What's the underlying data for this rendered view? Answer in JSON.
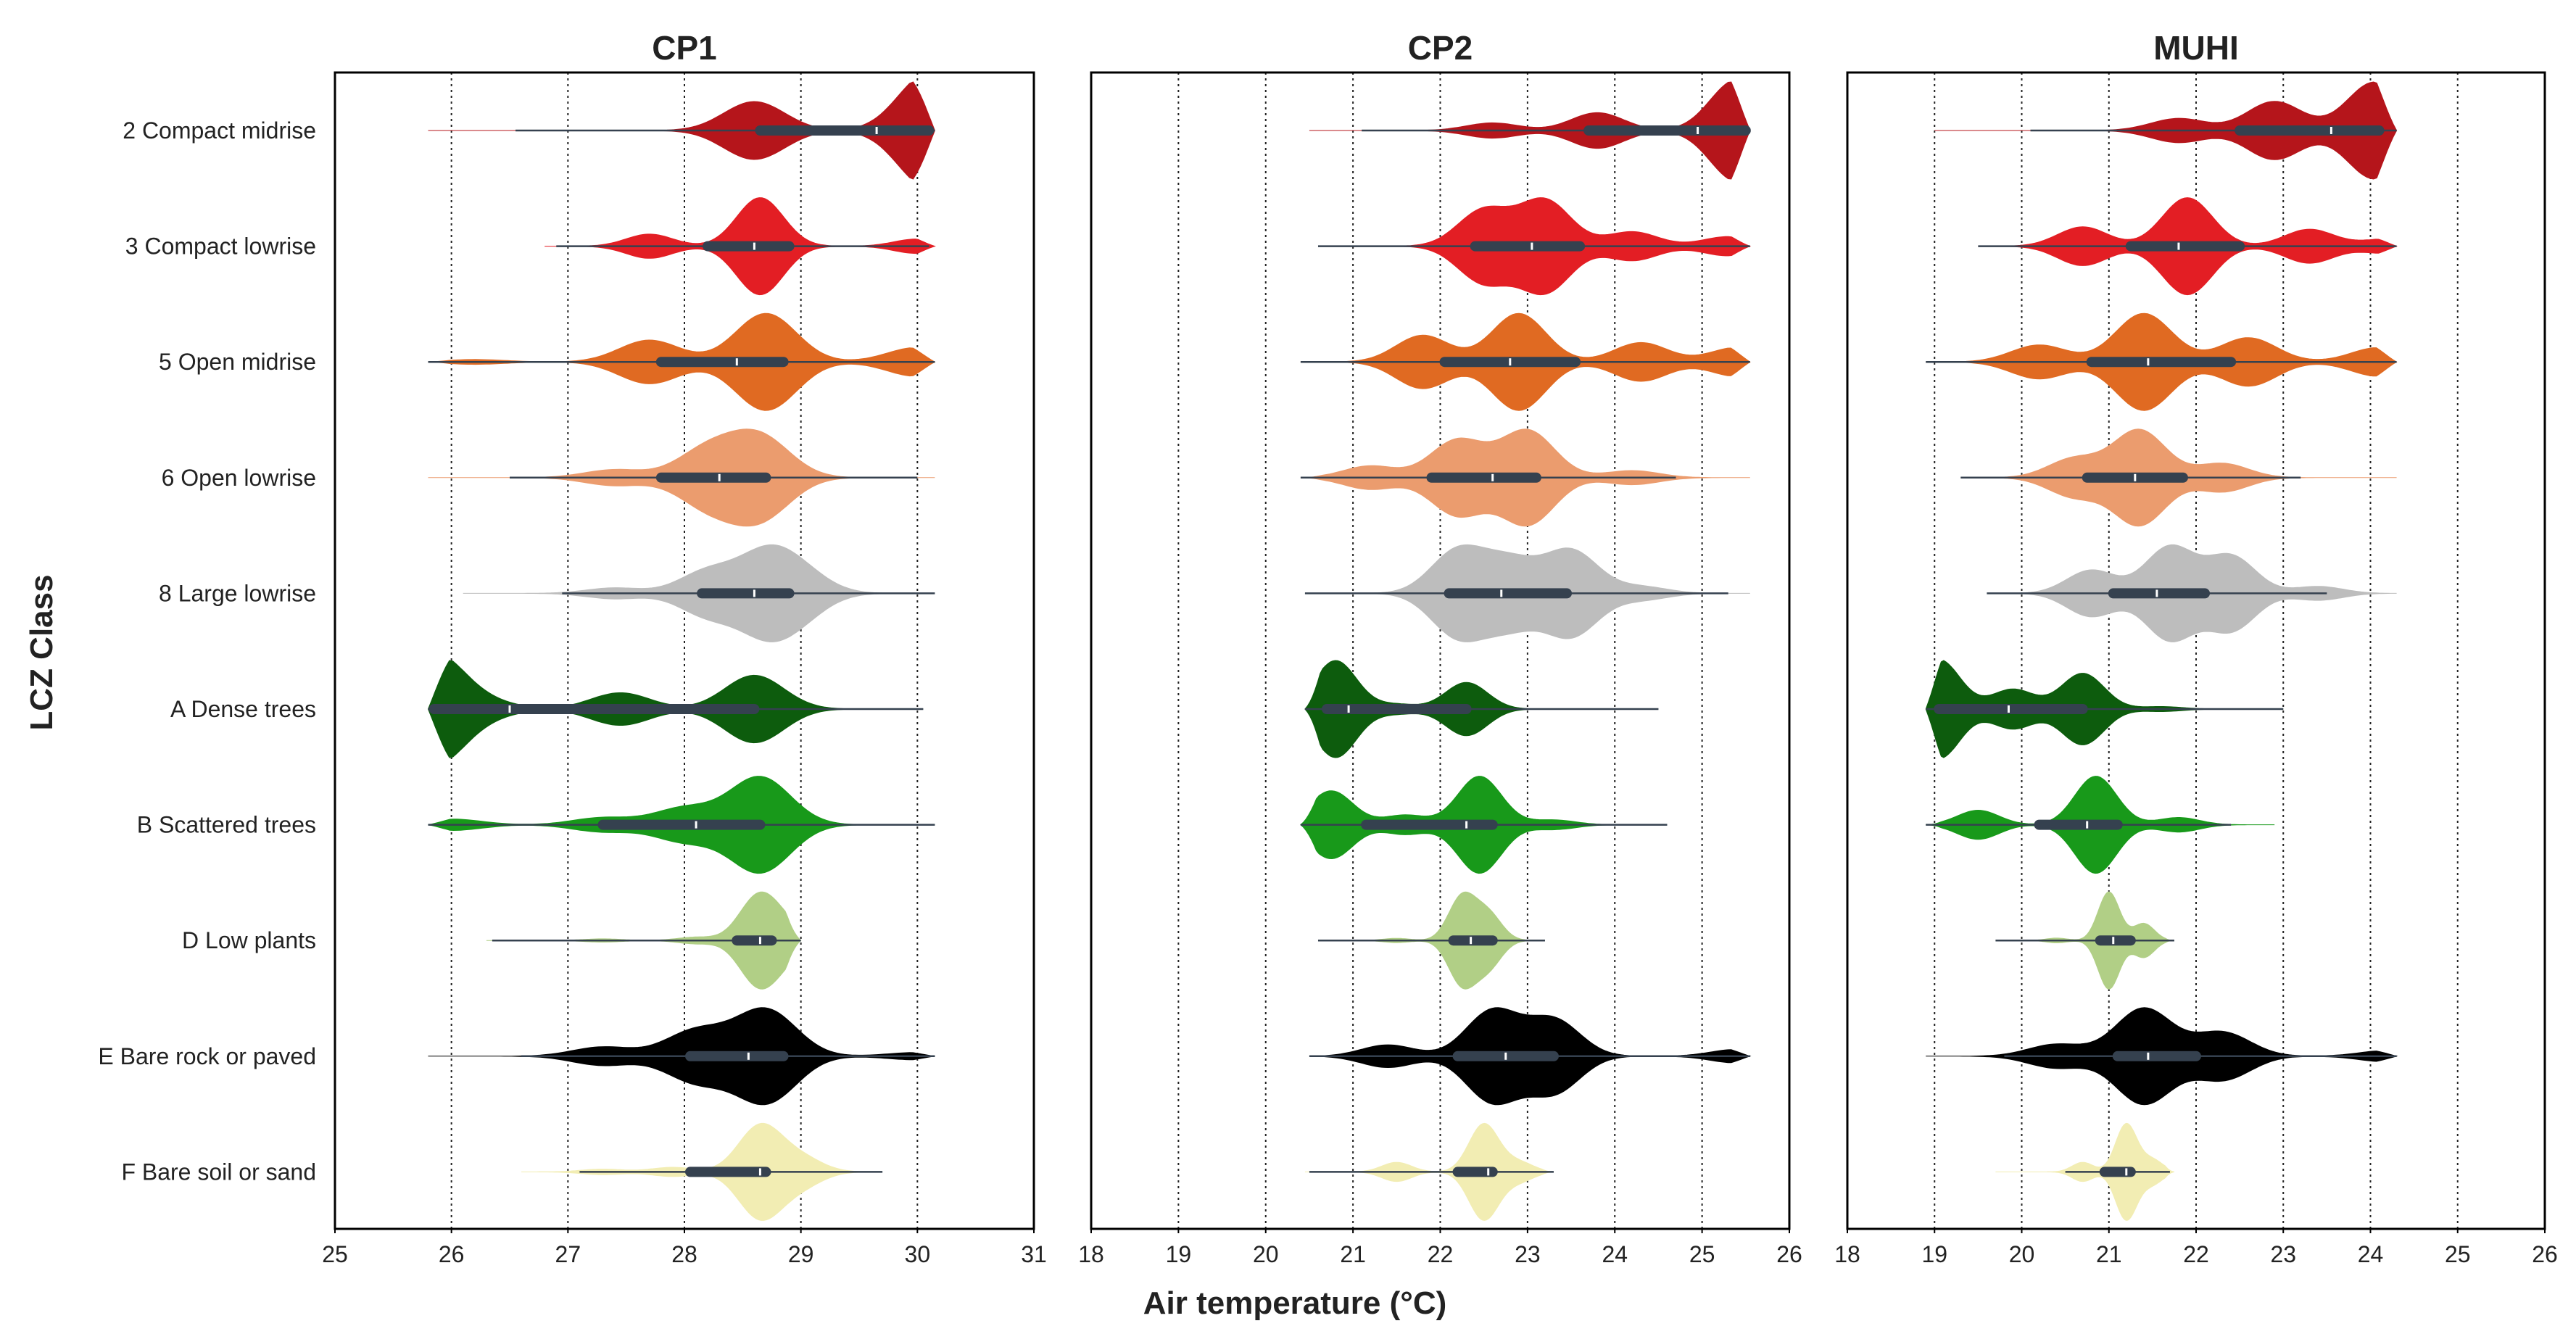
{
  "chart_data": {
    "type": "violin",
    "xlabel": "Air temperature (°C)",
    "ylabel": "LCZ Class",
    "categories": [
      "2 Compact midrise",
      "3 Compact lowrise",
      "5 Open midrise",
      "6 Open lowrise",
      "8 Large lowrise",
      "A Dense trees",
      "B Scattered trees",
      "D Low plants",
      "E Bare rock or paved",
      "F Bare soil or sand"
    ],
    "colors": [
      "#b5151b",
      "#e31e24",
      "#e06a22",
      "#eb9c6e",
      "#bdbdbd",
      "#0d5c0d",
      "#18991a",
      "#b1cf86",
      "#000000",
      "#f2edb3"
    ],
    "grid": "vertical dotted",
    "panels": [
      {
        "title": "CP1",
        "xlim": [
          25,
          31
        ],
        "xticks": [
          "25",
          "26",
          "27",
          "28",
          "29",
          "30",
          "31"
        ],
        "series": [
          {
            "min": 25.8,
            "whisker_lo": 26.55,
            "q1": 28.65,
            "median": 29.65,
            "q3": 30.1,
            "whisker_hi": 30.15,
            "max": 30.15,
            "peaks": [
              [
                30.1,
                1.0
              ],
              [
                28.6,
                0.5
              ]
            ]
          },
          {
            "min": 26.8,
            "whisker_lo": 26.9,
            "q1": 28.2,
            "median": 28.6,
            "q3": 28.9,
            "whisker_hi": 30.1,
            "max": 30.15,
            "peaks": [
              [
                28.65,
                1.0
              ],
              [
                27.7,
                0.25
              ],
              [
                30.0,
                0.15
              ]
            ]
          },
          {
            "min": 25.8,
            "whisker_lo": 25.8,
            "q1": 27.8,
            "median": 28.45,
            "q3": 28.85,
            "whisker_hi": 30.15,
            "max": 30.15,
            "peaks": [
              [
                28.7,
                1.0
              ],
              [
                27.7,
                0.45
              ],
              [
                30.0,
                0.3
              ],
              [
                26.2,
                0.05
              ]
            ]
          },
          {
            "min": 25.8,
            "whisker_lo": 26.5,
            "q1": 27.8,
            "median": 28.3,
            "q3": 28.7,
            "whisker_hi": 30.0,
            "max": 30.15,
            "peaks": [
              [
                28.65,
                1.0
              ],
              [
                28.2,
                0.7
              ],
              [
                27.4,
                0.2
              ]
            ]
          },
          {
            "min": 26.1,
            "whisker_lo": 26.95,
            "q1": 28.15,
            "median": 28.6,
            "q3": 28.9,
            "whisker_hi": 30.15,
            "max": 30.15,
            "peaks": [
              [
                28.7,
                1.0
              ],
              [
                28.2,
                0.6
              ],
              [
                29.0,
                0.5
              ],
              [
                27.4,
                0.15
              ]
            ]
          },
          {
            "min": 25.8,
            "whisker_lo": 25.8,
            "q1": 25.85,
            "median": 26.5,
            "q3": 28.6,
            "whisker_hi": 30.05,
            "max": 30.05,
            "peaks": [
              [
                25.85,
                1.0
              ],
              [
                28.6,
                0.62
              ],
              [
                27.45,
                0.3
              ],
              [
                26.3,
                0.12
              ]
            ]
          },
          {
            "min": 25.8,
            "whisker_lo": 25.8,
            "q1": 27.3,
            "median": 28.1,
            "q3": 28.65,
            "whisker_hi": 30.15,
            "max": 30.15,
            "peaks": [
              [
                28.65,
                1.0
              ],
              [
                28.0,
                0.35
              ],
              [
                26.0,
                0.12
              ],
              [
                27.3,
                0.15
              ]
            ]
          },
          {
            "min": 26.3,
            "whisker_lo": 26.35,
            "q1": 28.45,
            "median": 28.65,
            "q3": 28.75,
            "whisker_hi": 29.0,
            "max": 29.0,
            "peaks": [
              [
                28.63,
                1.0
              ],
              [
                28.85,
                0.35
              ],
              [
                28.1,
                0.08
              ],
              [
                27.3,
                0.04
              ]
            ]
          },
          {
            "min": 25.8,
            "whisker_lo": 26.6,
            "q1": 28.05,
            "median": 28.55,
            "q3": 28.85,
            "whisker_hi": 30.15,
            "max": 30.15,
            "peaks": [
              [
                28.7,
                1.0
              ],
              [
                28.1,
                0.55
              ],
              [
                27.3,
                0.2
              ],
              [
                30.0,
                0.08
              ]
            ]
          },
          {
            "min": 26.6,
            "whisker_lo": 27.1,
            "q1": 28.05,
            "median": 28.65,
            "q3": 28.7,
            "whisker_hi": 29.7,
            "max": 29.7,
            "peaks": [
              [
                28.65,
                1.0
              ],
              [
                29.0,
                0.3
              ],
              [
                27.9,
                0.1
              ],
              [
                27.3,
                0.06
              ]
            ]
          }
        ]
      },
      {
        "title": "CP2",
        "xlim": [
          18,
          26
        ],
        "xticks": [
          "18",
          "19",
          "20",
          "21",
          "22",
          "23",
          "24",
          "25",
          "26"
        ],
        "series": [
          {
            "min": 20.5,
            "whisker_lo": 21.1,
            "q1": 23.7,
            "median": 24.95,
            "q3": 25.5,
            "whisker_hi": 25.55,
            "max": 25.55,
            "peaks": [
              [
                25.4,
                1.0
              ],
              [
                23.8,
                0.35
              ],
              [
                22.6,
                0.15
              ]
            ]
          },
          {
            "min": 20.6,
            "whisker_lo": 20.6,
            "q1": 22.4,
            "median": 23.05,
            "q3": 23.6,
            "whisker_hi": 25.55,
            "max": 25.55,
            "peaks": [
              [
                23.2,
                0.95
              ],
              [
                22.5,
                0.75
              ],
              [
                24.2,
                0.3
              ],
              [
                25.3,
                0.2
              ]
            ]
          },
          {
            "min": 20.4,
            "whisker_lo": 20.4,
            "q1": 22.05,
            "median": 22.8,
            "q3": 23.55,
            "whisker_hi": 25.55,
            "max": 25.55,
            "peaks": [
              [
                22.9,
                1.0
              ],
              [
                21.8,
                0.55
              ],
              [
                24.3,
                0.4
              ],
              [
                25.4,
                0.3
              ]
            ]
          },
          {
            "min": 20.4,
            "whisker_lo": 20.4,
            "q1": 21.9,
            "median": 22.6,
            "q3": 23.1,
            "whisker_hi": 24.7,
            "max": 25.55,
            "peaks": [
              [
                23.0,
                1.0
              ],
              [
                22.2,
                0.8
              ],
              [
                21.2,
                0.25
              ],
              [
                24.2,
                0.15
              ]
            ]
          },
          {
            "min": 20.45,
            "whisker_lo": 20.45,
            "q1": 22.1,
            "median": 22.7,
            "q3": 23.45,
            "whisker_hi": 25.3,
            "max": 25.55,
            "peaks": [
              [
                22.2,
                0.95
              ],
              [
                23.5,
                0.95
              ],
              [
                22.8,
                0.7
              ],
              [
                24.3,
                0.15
              ]
            ]
          },
          {
            "min": 20.45,
            "whisker_lo": 20.45,
            "q1": 20.7,
            "median": 20.95,
            "q3": 22.3,
            "whisker_hi": 24.5,
            "max": 24.5,
            "peaks": [
              [
                20.8,
                1.0
              ],
              [
                22.3,
                0.55
              ],
              [
                21.5,
                0.1
              ]
            ]
          },
          {
            "min": 20.4,
            "whisker_lo": 20.4,
            "q1": 21.15,
            "median": 22.3,
            "q3": 22.6,
            "whisker_hi": 24.6,
            "max": 24.6,
            "peaks": [
              [
                22.45,
                1.0
              ],
              [
                20.75,
                0.7
              ],
              [
                21.6,
                0.2
              ],
              [
                23.3,
                0.1
              ]
            ]
          },
          {
            "min": 20.6,
            "whisker_lo": 20.6,
            "q1": 22.15,
            "median": 22.35,
            "q3": 22.6,
            "whisker_hi": 23.2,
            "max": 23.2,
            "peaks": [
              [
                22.25,
                1.0
              ],
              [
                22.55,
                0.6
              ],
              [
                21.5,
                0.05
              ]
            ]
          },
          {
            "min": 20.5,
            "whisker_lo": 20.5,
            "q1": 22.2,
            "median": 22.75,
            "q3": 23.3,
            "whisker_hi": 25.55,
            "max": 25.55,
            "peaks": [
              [
                22.6,
                1.0
              ],
              [
                23.3,
                0.8
              ],
              [
                21.4,
                0.25
              ],
              [
                25.4,
                0.15
              ]
            ]
          },
          {
            "min": 20.45,
            "whisker_lo": 20.5,
            "q1": 22.2,
            "median": 22.55,
            "q3": 22.6,
            "whisker_hi": 23.3,
            "max": 23.3,
            "peaks": [
              [
                22.5,
                1.0
              ],
              [
                21.5,
                0.2
              ],
              [
                22.9,
                0.2
              ]
            ]
          }
        ]
      },
      {
        "title": "MUHI",
        "xlim": [
          18,
          26
        ],
        "xticks": [
          "18",
          "19",
          "20",
          "21",
          "22",
          "23",
          "24",
          "25",
          "26"
        ],
        "series": [
          {
            "min": 19.0,
            "whisker_lo": 20.1,
            "q1": 22.5,
            "median": 23.55,
            "q3": 24.1,
            "whisker_hi": 24.3,
            "max": 24.3,
            "peaks": [
              [
                24.05,
                1.0
              ],
              [
                22.9,
                0.6
              ],
              [
                21.8,
                0.25
              ]
            ]
          },
          {
            "min": 19.5,
            "whisker_lo": 19.5,
            "q1": 21.25,
            "median": 21.8,
            "q3": 22.5,
            "whisker_hi": 24.3,
            "max": 24.3,
            "peaks": [
              [
                21.9,
                1.0
              ],
              [
                20.7,
                0.4
              ],
              [
                23.3,
                0.35
              ],
              [
                24.2,
                0.15
              ]
            ]
          },
          {
            "min": 18.9,
            "whisker_lo": 18.9,
            "q1": 20.8,
            "median": 21.45,
            "q3": 22.4,
            "whisker_hi": 24.3,
            "max": 24.3,
            "peaks": [
              [
                21.4,
                1.0
              ],
              [
                22.6,
                0.5
              ],
              [
                20.2,
                0.35
              ],
              [
                24.1,
                0.3
              ]
            ]
          },
          {
            "min": 19.3,
            "whisker_lo": 19.3,
            "q1": 20.75,
            "median": 21.3,
            "q3": 21.85,
            "whisker_hi": 23.2,
            "max": 24.3,
            "peaks": [
              [
                21.35,
                1.0
              ],
              [
                20.6,
                0.4
              ],
              [
                22.3,
                0.3
              ]
            ]
          },
          {
            "min": 19.6,
            "whisker_lo": 19.6,
            "q1": 21.05,
            "median": 21.55,
            "q3": 22.1,
            "whisker_hi": 23.5,
            "max": 24.3,
            "peaks": [
              [
                21.7,
                1.0
              ],
              [
                22.4,
                0.8
              ],
              [
                20.8,
                0.5
              ],
              [
                23.4,
                0.15
              ]
            ]
          },
          {
            "min": 18.9,
            "whisker_lo": 18.9,
            "q1": 19.05,
            "median": 19.85,
            "q3": 20.7,
            "whisker_hi": 23.0,
            "max": 23.0,
            "peaks": [
              [
                19.05,
                1.0
              ],
              [
                20.7,
                0.72
              ],
              [
                19.9,
                0.4
              ],
              [
                21.6,
                0.05
              ]
            ]
          },
          {
            "min": 18.9,
            "whisker_lo": 18.9,
            "q1": 20.2,
            "median": 20.75,
            "q3": 21.1,
            "whisker_hi": 22.4,
            "max": 22.9,
            "peaks": [
              [
                20.85,
                1.0
              ],
              [
                19.5,
                0.3
              ],
              [
                21.8,
                0.15
              ]
            ]
          },
          {
            "min": 19.7,
            "whisker_lo": 19.7,
            "q1": 20.9,
            "median": 21.05,
            "q3": 21.25,
            "whisker_hi": 21.75,
            "max": 21.75,
            "peaks": [
              [
                21.0,
                1.0
              ],
              [
                21.4,
                0.35
              ],
              [
                20.4,
                0.05
              ]
            ]
          },
          {
            "min": 18.9,
            "whisker_lo": 19.8,
            "q1": 21.1,
            "median": 21.45,
            "q3": 22.0,
            "whisker_hi": 24.3,
            "max": 24.3,
            "peaks": [
              [
                21.4,
                1.0
              ],
              [
                22.3,
                0.5
              ],
              [
                20.4,
                0.25
              ],
              [
                24.2,
                0.12
              ]
            ]
          },
          {
            "min": 19.7,
            "whisker_lo": 20.5,
            "q1": 20.95,
            "median": 21.2,
            "q3": 21.25,
            "whisker_hi": 21.7,
            "max": 21.75,
            "peaks": [
              [
                21.2,
                1.0
              ],
              [
                20.7,
                0.2
              ],
              [
                21.5,
                0.25
              ]
            ]
          }
        ]
      }
    ]
  }
}
